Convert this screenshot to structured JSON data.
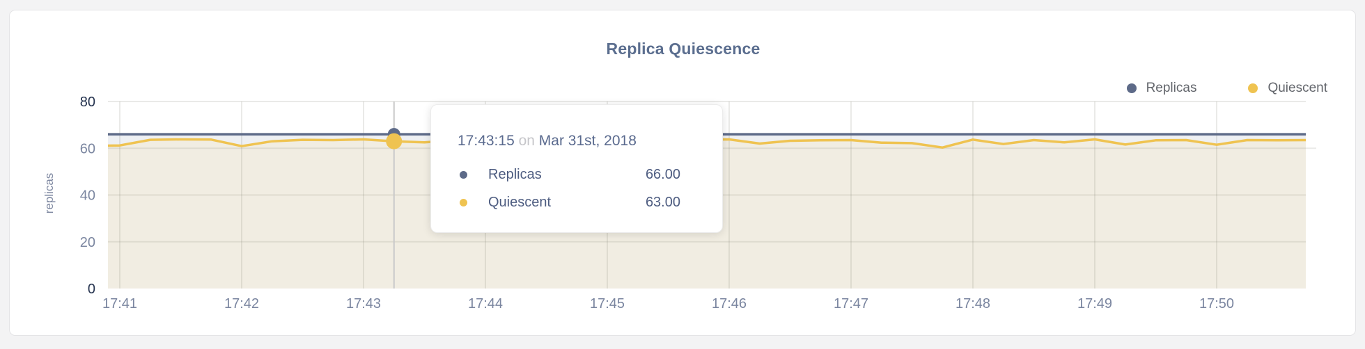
{
  "title": "Replica Quiescence",
  "colors": {
    "replicas": "#5d6a88",
    "quiescent": "#efc351",
    "quiescent_fill": "#f1ede2",
    "replicas_fill": "rgba(93,106,135,0.10)",
    "grid": "rgba(125,125,110,0.16)",
    "crosshair": "#c9c9c9",
    "title_text": "#5b6e8f",
    "tick_muted": "#7b86a0",
    "tick_edge": "#25334f"
  },
  "legend": {
    "items": [
      {
        "label": "Replicas",
        "color": "#5d6a88"
      },
      {
        "label": "Quiescent",
        "color": "#efc351"
      }
    ]
  },
  "tooltip": {
    "time": "17:43:15",
    "connector": "on",
    "date": "Mar 31st, 2018",
    "rows": [
      {
        "label": "Replicas",
        "value": "66.00",
        "color": "#5d6a88"
      },
      {
        "label": "Quiescent",
        "value": "63.00",
        "color": "#efc351"
      }
    ]
  },
  "chart_data": {
    "type": "line",
    "title": "Replica Quiescence",
    "xlabel": "",
    "ylabel": "replicas",
    "ylim": [
      0,
      80
    ],
    "y_ticks": [
      80,
      60,
      40,
      20,
      0
    ],
    "x_ticks": [
      "17:41",
      "17:42",
      "17:43",
      "17:44",
      "17:45",
      "17:46",
      "17:47",
      "17:48",
      "17:49",
      "17:50"
    ],
    "x_visible_range": [
      "17:40:54",
      "17:50:44"
    ],
    "date": "Mar 31st, 2018",
    "grid": "on",
    "legend_position": "top-right",
    "times": [
      "17:40:45",
      "17:41:00",
      "17:41:15",
      "17:41:30",
      "17:41:45",
      "17:42:00",
      "17:42:15",
      "17:42:30",
      "17:42:45",
      "17:43:00",
      "17:43:15",
      "17:43:30",
      "17:43:45",
      "17:44:00",
      "17:44:15",
      "17:44:30",
      "17:44:45",
      "17:45:00",
      "17:45:15",
      "17:45:30",
      "17:45:45",
      "17:46:00",
      "17:46:15",
      "17:46:30",
      "17:46:45",
      "17:47:00",
      "17:47:15",
      "17:47:30",
      "17:47:45",
      "17:48:00",
      "17:48:15",
      "17:48:30",
      "17:48:45",
      "17:49:00",
      "17:49:15",
      "17:49:30",
      "17:49:45",
      "17:50:00",
      "17:50:15",
      "17:50:30",
      "17:50:45",
      "17:51:00",
      "17:51:15"
    ],
    "series": [
      {
        "name": "Replicas",
        "color": "#5d6a88",
        "values": [
          66,
          66,
          66,
          66,
          66,
          66,
          66,
          66,
          66,
          66,
          66,
          66,
          66,
          66,
          66,
          66,
          66,
          66,
          66,
          66,
          66,
          66,
          66,
          66,
          66,
          66,
          66,
          66,
          66,
          66,
          66,
          66,
          66,
          66,
          66,
          66,
          66,
          66,
          66,
          66,
          66,
          66,
          66
        ]
      },
      {
        "name": "Quiescent",
        "color": "#efc351",
        "values": [
          61.0,
          61.2,
          63.6,
          63.8,
          63.7,
          60.9,
          63.0,
          63.6,
          63.5,
          63.8,
          63.0,
          62.5,
          63.5,
          63.0,
          63.6,
          63.2,
          63.7,
          63.0,
          63.5,
          62.8,
          63.6,
          63.8,
          62.0,
          63.2,
          63.4,
          63.5,
          62.4,
          62.2,
          60.3,
          63.7,
          61.8,
          63.5,
          62.5,
          63.8,
          61.6,
          63.4,
          63.5,
          61.5,
          63.5,
          63.4,
          63.5,
          63.3,
          61.5
        ]
      }
    ],
    "hover": {
      "time": "17:43:15",
      "replicas": 66.0,
      "quiescent": 63.0
    }
  }
}
